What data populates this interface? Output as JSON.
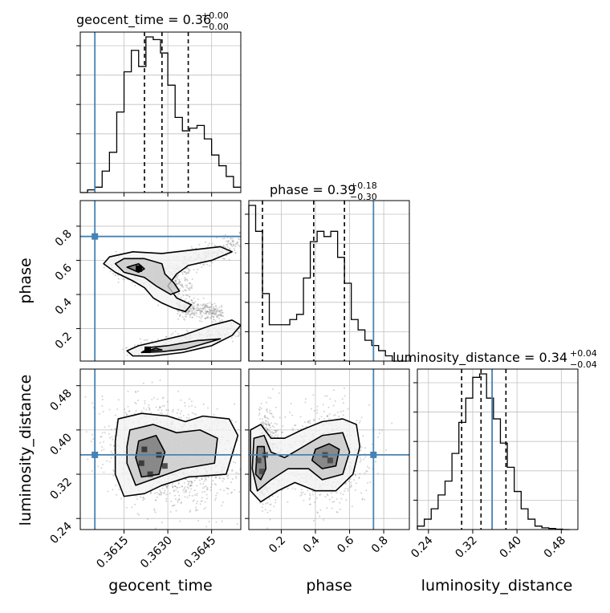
{
  "figure": {
    "panels": [
      {
        "title_base": "geocent_time = 0.36",
        "title_sup": "+0.00",
        "title_sub": "−0.00"
      },
      {
        "title_base": "phase = 0.39",
        "title_sup": "+0.18",
        "title_sub": "−0.30"
      },
      {
        "title_base": "luminosity_distance = 0.34",
        "title_sup": "+0.04",
        "title_sub": "−0.04"
      }
    ],
    "labels": {
      "x_geocent": "geocent_time",
      "x_phase": "phase",
      "x_lum": "luminosity_distance",
      "y_phase": "phase",
      "y_lum": "luminosity_distance"
    },
    "ticks": {
      "geocent": [
        "0.3615",
        "0.3630",
        "0.3645"
      ],
      "phase": [
        "0.2",
        "0.4",
        "0.6",
        "0.8"
      ],
      "lum": [
        "0.24",
        "0.32",
        "0.40",
        "0.48"
      ]
    },
    "colors": {
      "truth": "#4682b4",
      "hist": "#000000",
      "samples": "#808080",
      "grid": "#c0c0c0"
    }
  },
  "chart_data": {
    "type": "corner",
    "parameters": [
      "geocent_time",
      "phase",
      "luminosity_distance"
    ],
    "truth": {
      "geocent_time": 0.3605,
      "phase": 0.74,
      "luminosity_distance": 0.355
    },
    "quantiles": {
      "geocent_time": [
        0.3622,
        0.3628,
        0.3637
      ],
      "phase": [
        0.09,
        0.39,
        0.57
      ],
      "luminosity_distance": [
        0.3,
        0.335,
        0.38
      ]
    },
    "ranges": {
      "geocent_time": [
        0.36,
        0.3655
      ],
      "phase": [
        0.01,
        0.95
      ],
      "luminosity_distance": [
        0.22,
        0.51
      ]
    },
    "hist_geocent_time": {
      "edges": [
        0.36,
        0.36025,
        0.3605,
        0.36075,
        0.361,
        0.36125,
        0.3615,
        0.36175,
        0.362,
        0.36225,
        0.3625,
        0.36275,
        0.363,
        0.36325,
        0.3635,
        0.36375,
        0.364,
        0.36425,
        0.3645,
        0.36475,
        0.365,
        0.36525,
        0.3655
      ],
      "counts": [
        0,
        1,
        2,
        8,
        15,
        30,
        45,
        53,
        47,
        58,
        57,
        52,
        40,
        28,
        23,
        24,
        25,
        20,
        14,
        10,
        6,
        2
      ]
    },
    "hist_phase": {
      "edges": [
        0.01,
        0.05,
        0.09,
        0.13,
        0.17,
        0.21,
        0.25,
        0.29,
        0.33,
        0.37,
        0.41,
        0.45,
        0.49,
        0.53,
        0.57,
        0.61,
        0.65,
        0.69,
        0.73,
        0.77,
        0.81,
        0.85,
        0.89,
        0.93
      ],
      "counts": [
        30,
        25,
        13,
        7,
        7,
        7,
        8,
        9,
        16,
        23,
        25,
        24,
        25,
        20,
        15,
        8,
        6,
        4,
        3,
        2,
        1,
        0,
        0
      ]
    },
    "hist_luminosity_distance": {
      "edges": [
        0.22,
        0.2325,
        0.245,
        0.2575,
        0.27,
        0.2825,
        0.295,
        0.3075,
        0.32,
        0.3325,
        0.345,
        0.3575,
        0.37,
        0.3825,
        0.395,
        0.4075,
        0.42,
        0.4325,
        0.445,
        0.4575,
        0.47,
        0.4825,
        0.495
      ],
      "counts": [
        1,
        3,
        6,
        10,
        14,
        22,
        31,
        38,
        44,
        45,
        38,
        32,
        25,
        18,
        11,
        6,
        3,
        1,
        0.5,
        0.3,
        0.1,
        0
      ]
    },
    "contours": {
      "geocent_vs_phase": [
        {
          "level": "outer",
          "points": [
            [
              0.3608,
              0.58
            ],
            [
              0.3612,
              0.53
            ],
            [
              0.3618,
              0.48
            ],
            [
              0.3622,
              0.44
            ],
            [
              0.3625,
              0.38
            ],
            [
              0.3628,
              0.35
            ],
            [
              0.3632,
              0.32
            ],
            [
              0.3636,
              0.3
            ],
            [
              0.3638,
              0.34
            ],
            [
              0.3633,
              0.38
            ],
            [
              0.363,
              0.45
            ],
            [
              0.3633,
              0.52
            ],
            [
              0.3637,
              0.57
            ],
            [
              0.3645,
              0.6
            ],
            [
              0.3652,
              0.65
            ],
            [
              0.3648,
              0.68
            ],
            [
              0.3638,
              0.66
            ],
            [
              0.3628,
              0.64
            ],
            [
              0.3618,
              0.65
            ],
            [
              0.361,
              0.62
            ]
          ]
        },
        {
          "level": "mid",
          "points": [
            [
              0.3612,
              0.58
            ],
            [
              0.3615,
              0.53
            ],
            [
              0.3622,
              0.5
            ],
            [
              0.3626,
              0.45
            ],
            [
              0.3631,
              0.4
            ],
            [
              0.3634,
              0.42
            ],
            [
              0.3632,
              0.47
            ],
            [
              0.3629,
              0.52
            ],
            [
              0.3628,
              0.58
            ],
            [
              0.3622,
              0.61
            ],
            [
              0.3615,
              0.61
            ]
          ]
        },
        {
          "level": "inner",
          "points": [
            [
              0.3616,
              0.56
            ],
            [
              0.362,
              0.53
            ],
            [
              0.3622,
              0.55
            ],
            [
              0.362,
              0.58
            ]
          ]
        },
        {
          "level": "outer",
          "points": [
            [
              0.3618,
              0.04
            ],
            [
              0.3625,
              0.04
            ],
            [
              0.3635,
              0.06
            ],
            [
              0.3645,
              0.1
            ],
            [
              0.3652,
              0.16
            ],
            [
              0.3655,
              0.22
            ],
            [
              0.3652,
              0.25
            ],
            [
              0.3645,
              0.22
            ],
            [
              0.3635,
              0.16
            ],
            [
              0.3625,
              0.12
            ],
            [
              0.362,
              0.1
            ],
            [
              0.3616,
              0.07
            ]
          ]
        },
        {
          "level": "mid",
          "points": [
            [
              0.3621,
              0.06
            ],
            [
              0.3628,
              0.065
            ],
            [
              0.3636,
              0.08
            ],
            [
              0.3644,
              0.12
            ],
            [
              0.3648,
              0.14
            ],
            [
              0.364,
              0.13
            ],
            [
              0.363,
              0.1
            ],
            [
              0.3624,
              0.09
            ]
          ]
        },
        {
          "level": "inner",
          "points": [
            [
              0.3623,
              0.07
            ],
            [
              0.3628,
              0.075
            ],
            [
              0.3626,
              0.085
            ]
          ]
        }
      ],
      "geocent_vs_lum": [
        {
          "level": "outer",
          "points": [
            [
              0.3613,
              0.42
            ],
            [
              0.3621,
              0.43
            ],
            [
              0.363,
              0.425
            ],
            [
              0.3636,
              0.415
            ],
            [
              0.3642,
              0.425
            ],
            [
              0.3651,
              0.42
            ],
            [
              0.3654,
              0.39
            ],
            [
              0.365,
              0.32
            ],
            [
              0.3637,
              0.315
            ],
            [
              0.3628,
              0.3
            ],
            [
              0.3622,
              0.285
            ],
            [
              0.3615,
              0.28
            ],
            [
              0.3612,
              0.32
            ],
            [
              0.3612,
              0.38
            ]
          ]
        },
        {
          "level": "mid",
          "points": [
            [
              0.3617,
              0.4
            ],
            [
              0.3625,
              0.41
            ],
            [
              0.3633,
              0.395
            ],
            [
              0.3641,
              0.4
            ],
            [
              0.3647,
              0.385
            ],
            [
              0.3646,
              0.34
            ],
            [
              0.3635,
              0.33
            ],
            [
              0.3627,
              0.315
            ],
            [
              0.3619,
              0.3
            ],
            [
              0.3616,
              0.34
            ],
            [
              0.3616,
              0.37
            ]
          ]
        },
        {
          "level": "inner",
          "points": [
            [
              0.362,
              0.38
            ],
            [
              0.3626,
              0.39
            ],
            [
              0.3629,
              0.36
            ],
            [
              0.3627,
              0.32
            ],
            [
              0.3621,
              0.315
            ],
            [
              0.3619,
              0.35
            ]
          ]
        }
      ],
      "phase_vs_lum": [
        {
          "level": "outer",
          "points": [
            [
              0.02,
              0.4
            ],
            [
              0.08,
              0.41
            ],
            [
              0.14,
              0.385
            ],
            [
              0.22,
              0.385
            ],
            [
              0.32,
              0.4
            ],
            [
              0.44,
              0.415
            ],
            [
              0.56,
              0.42
            ],
            [
              0.64,
              0.41
            ],
            [
              0.66,
              0.37
            ],
            [
              0.62,
              0.32
            ],
            [
              0.52,
              0.29
            ],
            [
              0.4,
              0.29
            ],
            [
              0.28,
              0.305
            ],
            [
              0.18,
              0.29
            ],
            [
              0.08,
              0.27
            ],
            [
              0.02,
              0.29
            ]
          ]
        },
        {
          "level": "mid",
          "points": [
            [
              0.04,
              0.385
            ],
            [
              0.1,
              0.39
            ],
            [
              0.14,
              0.36
            ],
            [
              0.22,
              0.35
            ],
            [
              0.33,
              0.37
            ],
            [
              0.44,
              0.39
            ],
            [
              0.56,
              0.395
            ],
            [
              0.6,
              0.36
            ],
            [
              0.56,
              0.32
            ],
            [
              0.44,
              0.31
            ],
            [
              0.36,
              0.33
            ],
            [
              0.24,
              0.33
            ],
            [
              0.14,
              0.31
            ],
            [
              0.06,
              0.29
            ],
            [
              0.03,
              0.33
            ]
          ]
        },
        {
          "level": "inner",
          "points": [
            [
              0.06,
              0.37
            ],
            [
              0.1,
              0.37
            ],
            [
              0.11,
              0.33
            ],
            [
              0.08,
              0.31
            ],
            [
              0.05,
              0.32
            ]
          ]
        },
        {
          "level": "inner",
          "points": [
            [
              0.4,
              0.365
            ],
            [
              0.48,
              0.375
            ],
            [
              0.54,
              0.365
            ],
            [
              0.52,
              0.335
            ],
            [
              0.44,
              0.33
            ],
            [
              0.38,
              0.345
            ]
          ]
        }
      ]
    }
  }
}
